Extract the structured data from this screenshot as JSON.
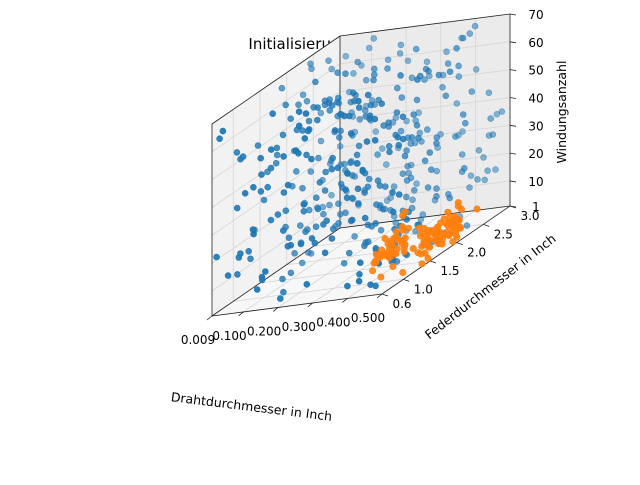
{
  "chart_data": {
    "type": "scatter3d",
    "title": "Initialisierungsdata",
    "xlabel": "Drahtdurchmesser in Inch",
    "ylabel": "Federdurchmesser in Inch",
    "zlabel": "Windungsanzahl",
    "x_ticks": [
      "0.009",
      "0.100",
      "0.200",
      "0.300",
      "0.400",
      "0.500"
    ],
    "x_tick_values": [
      0.009,
      0.1,
      0.2,
      0.3,
      0.4,
      0.5
    ],
    "y_ticks": [
      "0.6",
      "1.0",
      "1.5",
      "2.0",
      "2.5",
      "3.0"
    ],
    "y_tick_values": [
      0.6,
      1.0,
      1.5,
      2.0,
      2.5,
      3.0
    ],
    "z_ticks": [
      "1",
      "10",
      "20",
      "30",
      "40",
      "50",
      "60",
      "70"
    ],
    "z_tick_values": [
      1,
      10,
      20,
      30,
      40,
      50,
      60,
      70
    ],
    "xlim": [
      0.009,
      0.5
    ],
    "ylim": [
      0.6,
      3.0
    ],
    "zlim": [
      1,
      70
    ],
    "grid": true,
    "series": [
      {
        "color": "#1f77b4",
        "sampling": "uniform-random",
        "count": 400,
        "x_range": [
          0.009,
          0.5
        ],
        "y_range": [
          0.6,
          3.0
        ],
        "z_range": [
          1,
          70
        ]
      },
      {
        "color": "#ff7f0e",
        "clusters": [
          {
            "center": [
              0.49,
              1.6,
              8
            ],
            "spread": [
              0.012,
              0.18,
              3
            ],
            "count": 45
          },
          {
            "center": [
              0.44,
              1.2,
              10
            ],
            "spread": [
              0.02,
              0.15,
              4
            ],
            "count": 45
          },
          {
            "center": [
              0.48,
              2.1,
              6
            ],
            "spread": [
              0.012,
              0.15,
              3
            ],
            "count": 30
          }
        ]
      }
    ]
  }
}
